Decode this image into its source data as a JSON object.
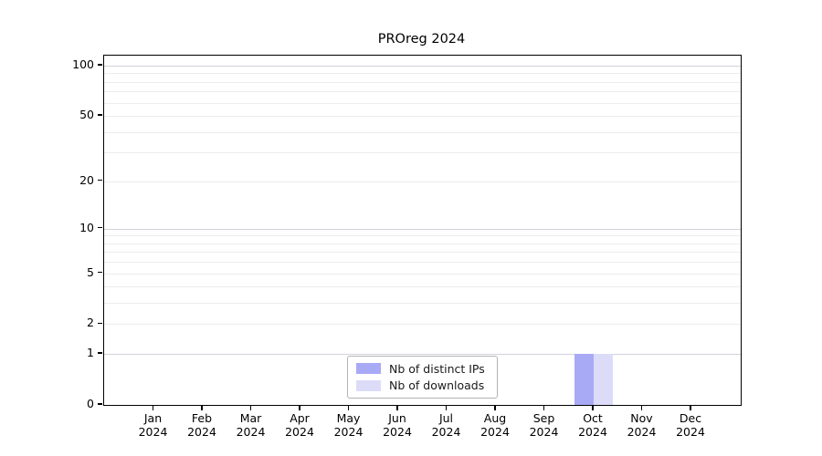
{
  "chart_data": {
    "type": "bar",
    "title": "PROreg 2024",
    "year": "2024",
    "categories": [
      "Jan",
      "Feb",
      "Mar",
      "Apr",
      "May",
      "Jun",
      "Jul",
      "Aug",
      "Sep",
      "Oct",
      "Nov",
      "Dec"
    ],
    "series": [
      {
        "name": "Nb of distinct IPs",
        "color": "#a9aaf6",
        "values": [
          0,
          0,
          0,
          0,
          0,
          0,
          0,
          0,
          0,
          1,
          0,
          0
        ]
      },
      {
        "name": "Nb of downloads",
        "color": "#dcdcf8",
        "values": [
          0,
          0,
          0,
          0,
          0,
          0,
          0,
          0,
          0,
          1,
          0,
          0
        ]
      }
    ],
    "y_axis": {
      "scale": "log10(1+y)",
      "tick_values": [
        0,
        1,
        2,
        5,
        10,
        20,
        50,
        100
      ],
      "ylim": [
        0,
        115
      ]
    },
    "x_axis": {
      "tick_label_lines": [
        "month",
        "year"
      ]
    },
    "grid": {
      "minor_values": [
        2,
        3,
        4,
        5,
        6,
        7,
        8,
        9,
        20,
        30,
        40,
        50,
        60,
        70,
        80,
        90
      ],
      "major_values": [
        1,
        10,
        100
      ],
      "minor_color": "#ececec",
      "major_color": "#d2d2de"
    },
    "legend": {
      "position": "lower center"
    },
    "colors": {
      "axis": "#000000",
      "background": "#ffffff"
    }
  }
}
